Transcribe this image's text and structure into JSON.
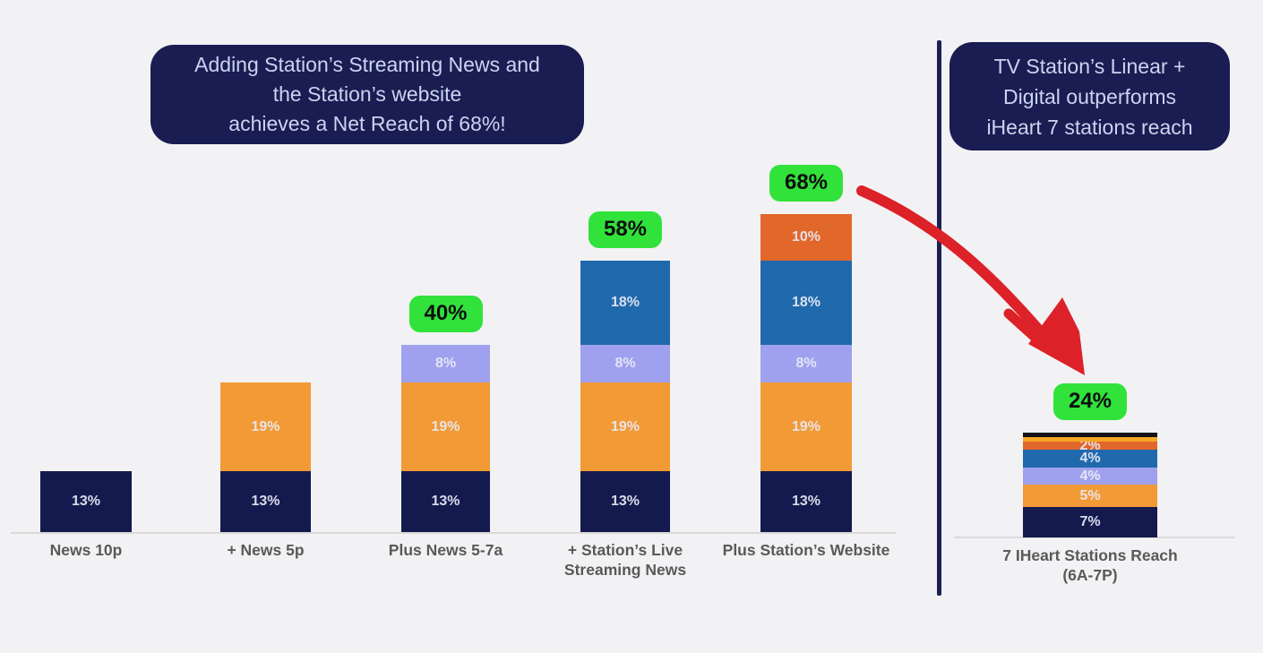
{
  "colors": {
    "navy": "#151a4e",
    "orange": "#f29a35",
    "periwinkle": "#9fa1ee",
    "blue": "#2169ad",
    "dark_orange": "#e2672b",
    "amber": "#f4a823",
    "black": "#141414",
    "green_callout": "#31e23b",
    "callout_text": "#0d0d0d",
    "box_bg": "#191d52",
    "box_text": "#ccd3ef",
    "axis_label": "#595959",
    "segment_label": "#e9ebf7",
    "divider": "#1a2156",
    "arrow_red": "#dd2128",
    "background": "#f2f2f4"
  },
  "chart_data": {
    "type": "bar",
    "stacked": true,
    "unit": "%",
    "grid": false,
    "legend": "none",
    "ylim": [
      0,
      75
    ],
    "categories": [
      "News 10p",
      "+ News 5p",
      "Plus News 5-7a",
      "+ Station’s Live\nStreaming News",
      "Plus Station’s Website",
      "7 IHeart Stations Reach\n(6A-7P)"
    ],
    "bars": [
      {
        "category": "News 10p",
        "total": 13,
        "callout": "",
        "segments": [
          {
            "value": 13,
            "label": "13%",
            "color": "navy"
          }
        ]
      },
      {
        "category": "+ News 5p",
        "total": 32,
        "callout": "",
        "segments": [
          {
            "value": 13,
            "label": "13%",
            "color": "navy"
          },
          {
            "value": 19,
            "label": "19%",
            "color": "orange"
          }
        ]
      },
      {
        "category": "Plus News 5-7a",
        "total": 40,
        "callout": "40%",
        "segments": [
          {
            "value": 13,
            "label": "13%",
            "color": "navy"
          },
          {
            "value": 19,
            "label": "19%",
            "color": "orange"
          },
          {
            "value": 8,
            "label": "8%",
            "color": "periwinkle"
          }
        ]
      },
      {
        "category": "+ Station’s Live\nStreaming News",
        "total": 58,
        "callout": "58%",
        "segments": [
          {
            "value": 13,
            "label": "13%",
            "color": "navy"
          },
          {
            "value": 19,
            "label": "19%",
            "color": "orange"
          },
          {
            "value": 8,
            "label": "8%",
            "color": "periwinkle"
          },
          {
            "value": 18,
            "label": "18%",
            "color": "blue"
          }
        ]
      },
      {
        "category": "Plus Station’s Website",
        "total": 68,
        "callout": "68%",
        "segments": [
          {
            "value": 13,
            "label": "13%",
            "color": "navy"
          },
          {
            "value": 19,
            "label": "19%",
            "color": "orange"
          },
          {
            "value": 8,
            "label": "8%",
            "color": "periwinkle"
          },
          {
            "value": 18,
            "label": "18%",
            "color": "blue"
          },
          {
            "value": 10,
            "label": "10%",
            "color": "dark_orange"
          }
        ]
      },
      {
        "category": "7 IHeart Stations Reach\n(6A-7P)",
        "total": 24,
        "callout": "24%",
        "segments": [
          {
            "value": 7,
            "label": "7%",
            "color": "navy"
          },
          {
            "value": 5,
            "label": "5%",
            "color": "orange"
          },
          {
            "value": 4,
            "label": "4%",
            "color": "periwinkle"
          },
          {
            "value": 4,
            "label": "4%",
            "color": "blue"
          },
          {
            "value": 2,
            "label": "2%",
            "color": "dark_orange"
          },
          {
            "value": 1,
            "label": "",
            "color": "amber"
          },
          {
            "value": 1,
            "label": "",
            "color": "black"
          }
        ]
      }
    ],
    "annotations": {
      "left_box": {
        "lines": [
          "Adding Station’s Streaming News and",
          "the Station’s website",
          "achieves a Net Reach of 68%!"
        ]
      },
      "right_box": {
        "lines": [
          "TV Station’s Linear +",
          "Digital outperforms",
          "iHeart 7 stations reach"
        ]
      }
    }
  }
}
